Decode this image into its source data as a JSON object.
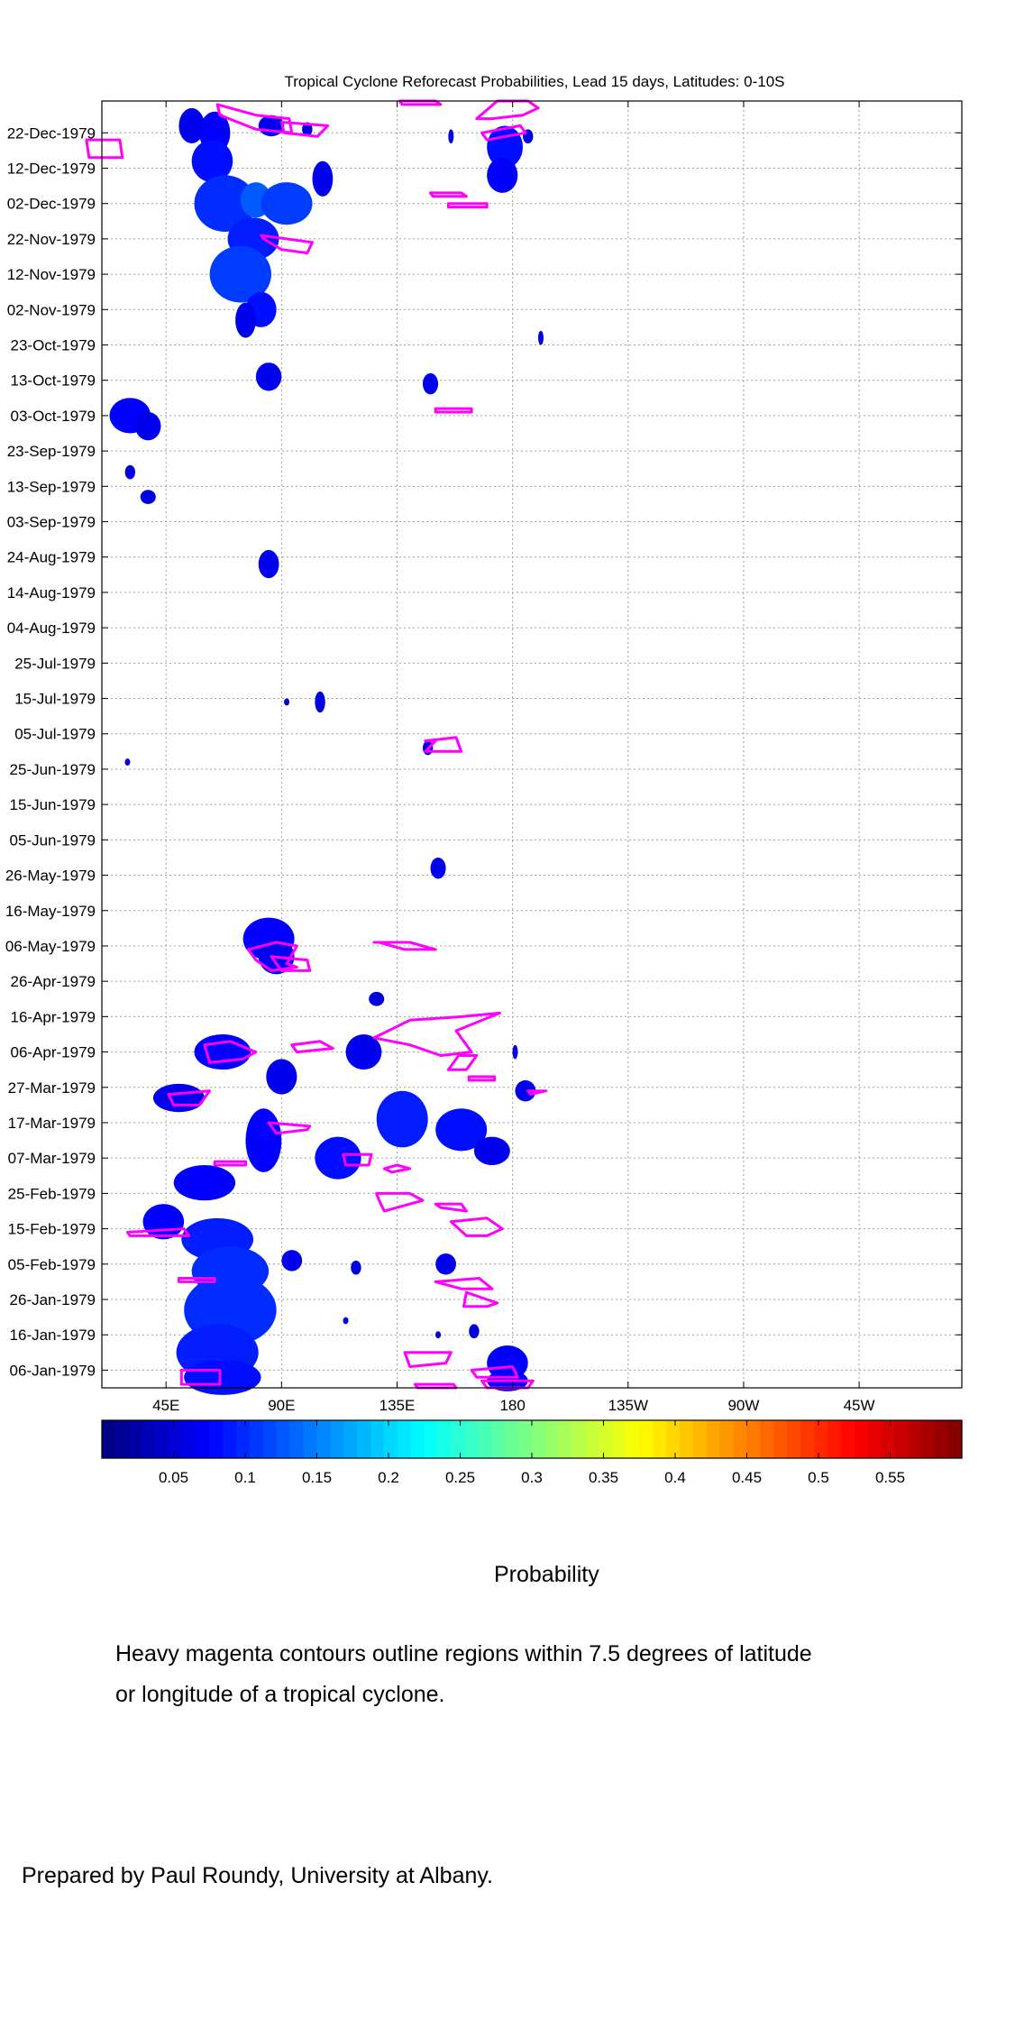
{
  "chart_data": {
    "type": "heatmap",
    "title": "Tropical Cyclone Reforecast Probabilities, Lead 15 days, Latitudes: 0-10S",
    "xlabel": "",
    "ylabel": "",
    "x_range_deg": [
      20,
      355
    ],
    "x_ticks": [
      {
        "lon": 45,
        "label": "45E"
      },
      {
        "lon": 90,
        "label": "90E"
      },
      {
        "lon": 135,
        "label": "135E"
      },
      {
        "lon": 180,
        "label": "180"
      },
      {
        "lon": 225,
        "label": "135W"
      },
      {
        "lon": 270,
        "label": "90W"
      },
      {
        "lon": 315,
        "label": "45W"
      }
    ],
    "y_range_days": [
      0,
      364
    ],
    "y_ticks": [
      {
        "day": 5,
        "label": "06-Jan-1979"
      },
      {
        "day": 15,
        "label": "16-Jan-1979"
      },
      {
        "day": 25,
        "label": "26-Jan-1979"
      },
      {
        "day": 35,
        "label": "05-Feb-1979"
      },
      {
        "day": 45,
        "label": "15-Feb-1979"
      },
      {
        "day": 55,
        "label": "25-Feb-1979"
      },
      {
        "day": 65,
        "label": "07-Mar-1979"
      },
      {
        "day": 75,
        "label": "17-Mar-1979"
      },
      {
        "day": 85,
        "label": "27-Mar-1979"
      },
      {
        "day": 95,
        "label": "06-Apr-1979"
      },
      {
        "day": 105,
        "label": "16-Apr-1979"
      },
      {
        "day": 115,
        "label": "26-Apr-1979"
      },
      {
        "day": 125,
        "label": "06-May-1979"
      },
      {
        "day": 135,
        "label": "16-May-1979"
      },
      {
        "day": 145,
        "label": "26-May-1979"
      },
      {
        "day": 155,
        "label": "05-Jun-1979"
      },
      {
        "day": 165,
        "label": "15-Jun-1979"
      },
      {
        "day": 175,
        "label": "25-Jun-1979"
      },
      {
        "day": 185,
        "label": "05-Jul-1979"
      },
      {
        "day": 195,
        "label": "15-Jul-1979"
      },
      {
        "day": 205,
        "label": "25-Jul-1979"
      },
      {
        "day": 215,
        "label": "04-Aug-1979"
      },
      {
        "day": 225,
        "label": "14-Aug-1979"
      },
      {
        "day": 235,
        "label": "24-Aug-1979"
      },
      {
        "day": 245,
        "label": "03-Sep-1979"
      },
      {
        "day": 255,
        "label": "13-Sep-1979"
      },
      {
        "day": 265,
        "label": "23-Sep-1979"
      },
      {
        "day": 275,
        "label": "03-Oct-1979"
      },
      {
        "day": 285,
        "label": "13-Oct-1979"
      },
      {
        "day": 295,
        "label": "23-Oct-1979"
      },
      {
        "day": 305,
        "label": "02-Nov-1979"
      },
      {
        "day": 315,
        "label": "12-Nov-1979"
      },
      {
        "day": 325,
        "label": "22-Nov-1979"
      },
      {
        "day": 335,
        "label": "02-Dec-1979"
      },
      {
        "day": 345,
        "label": "12-Dec-1979"
      },
      {
        "day": 355,
        "label": "22-Dec-1979"
      }
    ],
    "grid": true,
    "colorbar": {
      "range": [
        0,
        0.6
      ],
      "tick_labels": [
        "0.05",
        "0.1",
        "0.15",
        "0.2",
        "0.25",
        "0.3",
        "0.35",
        "0.4",
        "0.45",
        "0.5",
        "0.55"
      ],
      "tick_values": [
        0.05,
        0.1,
        0.15,
        0.2,
        0.25,
        0.3,
        0.35,
        0.4,
        0.45,
        0.5,
        0.55
      ],
      "label": "Probability",
      "colormap": "jet"
    },
    "probability_blobs": [
      {
        "lon": 55,
        "day": 357,
        "dlon": 5,
        "dday": 5,
        "p": 0.05
      },
      {
        "lon": 64,
        "day": 355,
        "dlon": 6,
        "dday": 6,
        "p": 0.06
      },
      {
        "lon": 86,
        "day": 357,
        "dlon": 5,
        "dday": 3,
        "p": 0.05
      },
      {
        "lon": 63,
        "day": 347,
        "dlon": 8,
        "dday": 6,
        "p": 0.07
      },
      {
        "lon": 68,
        "day": 335,
        "dlon": 12,
        "dday": 8,
        "p": 0.09
      },
      {
        "lon": 80,
        "day": 336,
        "dlon": 6,
        "dday": 5,
        "p": 0.12
      },
      {
        "lon": 92,
        "day": 335,
        "dlon": 10,
        "dday": 6,
        "p": 0.1
      },
      {
        "lon": 106,
        "day": 342,
        "dlon": 4,
        "dday": 5,
        "p": 0.05
      },
      {
        "lon": 79,
        "day": 325,
        "dlon": 10,
        "dday": 6,
        "p": 0.08
      },
      {
        "lon": 74,
        "day": 315,
        "dlon": 12,
        "dday": 8,
        "p": 0.1
      },
      {
        "lon": 82,
        "day": 305,
        "dlon": 6,
        "dday": 5,
        "p": 0.07
      },
      {
        "lon": 76,
        "day": 302,
        "dlon": 4,
        "dday": 5,
        "p": 0.05
      },
      {
        "lon": 100,
        "day": 356,
        "dlon": 2,
        "dday": 2,
        "p": 0.04
      },
      {
        "lon": 156,
        "day": 354,
        "dlon": 1,
        "dday": 2,
        "p": 0.04
      },
      {
        "lon": 186,
        "day": 354,
        "dlon": 2,
        "dday": 2,
        "p": 0.04
      },
      {
        "lon": 177,
        "day": 351,
        "dlon": 7,
        "dday": 6,
        "p": 0.07
      },
      {
        "lon": 176,
        "day": 343,
        "dlon": 6,
        "dday": 5,
        "p": 0.06
      },
      {
        "lon": 191,
        "day": 297,
        "dlon": 1,
        "dday": 2,
        "p": 0.04
      },
      {
        "lon": 85,
        "day": 286,
        "dlon": 5,
        "dday": 4,
        "p": 0.05
      },
      {
        "lon": 148,
        "day": 284,
        "dlon": 3,
        "dday": 3,
        "p": 0.05
      },
      {
        "lon": 31,
        "day": 275,
        "dlon": 8,
        "dday": 5,
        "p": 0.06
      },
      {
        "lon": 38,
        "day": 272,
        "dlon": 5,
        "dday": 4,
        "p": 0.05
      },
      {
        "lon": 31,
        "day": 259,
        "dlon": 2,
        "dday": 2,
        "p": 0.04
      },
      {
        "lon": 38,
        "day": 252,
        "dlon": 3,
        "dday": 2,
        "p": 0.04
      },
      {
        "lon": 85,
        "day": 233,
        "dlon": 4,
        "dday": 4,
        "p": 0.05
      },
      {
        "lon": 105,
        "day": 194,
        "dlon": 2,
        "dday": 3,
        "p": 0.04
      },
      {
        "lon": 92,
        "day": 194,
        "dlon": 1,
        "dday": 1,
        "p": 0.04
      },
      {
        "lon": 147,
        "day": 181,
        "dlon": 2,
        "dday": 2,
        "p": 0.04
      },
      {
        "lon": 30,
        "day": 177,
        "dlon": 1,
        "dday": 1,
        "p": 0.04
      },
      {
        "lon": 151,
        "day": 147,
        "dlon": 3,
        "dday": 3,
        "p": 0.05
      },
      {
        "lon": 85,
        "day": 127,
        "dlon": 10,
        "dday": 6,
        "p": 0.06
      },
      {
        "lon": 88,
        "day": 122,
        "dlon": 7,
        "dday": 5,
        "p": 0.05
      },
      {
        "lon": 127,
        "day": 110,
        "dlon": 3,
        "dday": 2,
        "p": 0.04
      },
      {
        "lon": 67,
        "day": 95,
        "dlon": 11,
        "dday": 5,
        "p": 0.06
      },
      {
        "lon": 90,
        "day": 88,
        "dlon": 6,
        "dday": 5,
        "p": 0.05
      },
      {
        "lon": 122,
        "day": 95,
        "dlon": 7,
        "dday": 5,
        "p": 0.05
      },
      {
        "lon": 50,
        "day": 82,
        "dlon": 10,
        "dday": 4,
        "p": 0.05
      },
      {
        "lon": 137,
        "day": 76,
        "dlon": 10,
        "dday": 8,
        "p": 0.08
      },
      {
        "lon": 160,
        "day": 73,
        "dlon": 10,
        "dday": 6,
        "p": 0.07
      },
      {
        "lon": 172,
        "day": 67,
        "dlon": 7,
        "dday": 4,
        "p": 0.05
      },
      {
        "lon": 185,
        "day": 84,
        "dlon": 4,
        "dday": 3,
        "p": 0.05
      },
      {
        "lon": 112,
        "day": 65,
        "dlon": 9,
        "dday": 6,
        "p": 0.07
      },
      {
        "lon": 83,
        "day": 70,
        "dlon": 7,
        "dday": 9,
        "p": 0.06
      },
      {
        "lon": 60,
        "day": 58,
        "dlon": 12,
        "dday": 5,
        "p": 0.06
      },
      {
        "lon": 44,
        "day": 47,
        "dlon": 8,
        "dday": 5,
        "p": 0.06
      },
      {
        "lon": 65,
        "day": 42,
        "dlon": 14,
        "dday": 6,
        "p": 0.08
      },
      {
        "lon": 70,
        "day": 33,
        "dlon": 15,
        "dday": 7,
        "p": 0.09
      },
      {
        "lon": 70,
        "day": 22,
        "dlon": 18,
        "dday": 10,
        "p": 0.09
      },
      {
        "lon": 65,
        "day": 10,
        "dlon": 16,
        "dday": 8,
        "p": 0.08
      },
      {
        "lon": 67,
        "day": 3,
        "dlon": 15,
        "dday": 5,
        "p": 0.07
      },
      {
        "lon": 94,
        "day": 36,
        "dlon": 4,
        "dday": 3,
        "p": 0.05
      },
      {
        "lon": 119,
        "day": 34,
        "dlon": 2,
        "dday": 2,
        "p": 0.04
      },
      {
        "lon": 154,
        "day": 35,
        "dlon": 4,
        "dday": 3,
        "p": 0.05
      },
      {
        "lon": 178,
        "day": 7,
        "dlon": 8,
        "dday": 5,
        "p": 0.06
      },
      {
        "lon": 178,
        "day": 2,
        "dlon": 8,
        "dday": 3,
        "p": 0.06
      },
      {
        "lon": 165,
        "day": 16,
        "dlon": 2,
        "dday": 2,
        "p": 0.04
      },
      {
        "lon": 151,
        "day": 15,
        "dlon": 1,
        "dday": 1,
        "p": 0.04
      },
      {
        "lon": 115,
        "day": 19,
        "dlon": 1,
        "dday": 1,
        "p": 0.04
      },
      {
        "lon": 181,
        "day": 95,
        "dlon": 1,
        "dday": 2,
        "p": 0.04
      }
    ],
    "cyclone_contours": [
      [
        [
          14,
          353
        ],
        [
          27,
          353
        ],
        [
          28,
          348
        ],
        [
          15,
          348
        ]
      ],
      [
        [
          65,
          363
        ],
        [
          80,
          360
        ],
        [
          93,
          359
        ],
        [
          94,
          355
        ],
        [
          80,
          356
        ],
        [
          66,
          360
        ]
      ],
      [
        [
          90,
          358
        ],
        [
          108,
          357
        ],
        [
          104,
          354
        ],
        [
          91,
          355
        ]
      ],
      [
        [
          136,
          364
        ],
        [
          150,
          364
        ],
        [
          152,
          363
        ],
        [
          137,
          363
        ]
      ],
      [
        [
          166,
          359
        ],
        [
          174,
          364
        ],
        [
          186,
          364
        ],
        [
          190,
          362
        ],
        [
          184,
          360
        ],
        [
          172,
          359
        ]
      ],
      [
        [
          168,
          355
        ],
        [
          183,
          357
        ],
        [
          185,
          355
        ],
        [
          170,
          353
        ]
      ],
      [
        [
          148,
          338
        ],
        [
          160,
          338
        ],
        [
          162,
          337
        ],
        [
          149,
          337
        ]
      ],
      [
        [
          155,
          335
        ],
        [
          170,
          335
        ],
        [
          170,
          334
        ],
        [
          155,
          334
        ]
      ],
      [
        [
          82,
          326
        ],
        [
          102,
          324
        ],
        [
          100,
          321
        ],
        [
          90,
          322
        ],
        [
          83,
          325
        ]
      ],
      [
        [
          150,
          277
        ],
        [
          164,
          277
        ],
        [
          164,
          276
        ],
        [
          150,
          276
        ]
      ],
      [
        [
          146,
          183
        ],
        [
          158,
          184
        ],
        [
          160,
          180
        ],
        [
          146,
          180
        ],
        [
          150,
          183
        ]
      ],
      [
        [
          126,
          126
        ],
        [
          140,
          126
        ],
        [
          150,
          124
        ],
        [
          138,
          124
        ],
        [
          128,
          126
        ]
      ],
      [
        [
          77,
          124
        ],
        [
          88,
          126
        ],
        [
          96,
          125
        ],
        [
          92,
          120
        ],
        [
          96,
          119
        ],
        [
          86,
          118
        ],
        [
          80,
          121
        ]
      ],
      [
        [
          86,
          122
        ],
        [
          100,
          121
        ],
        [
          101,
          118
        ],
        [
          90,
          118
        ]
      ],
      [
        [
          126,
          99
        ],
        [
          140,
          104
        ],
        [
          160,
          105
        ],
        [
          175,
          106
        ],
        [
          158,
          101
        ],
        [
          164,
          95
        ],
        [
          152,
          94
        ],
        [
          140,
          97
        ]
      ],
      [
        [
          159,
          94
        ],
        [
          166,
          94
        ],
        [
          162,
          90
        ],
        [
          155,
          90
        ]
      ],
      [
        [
          163,
          88
        ],
        [
          173,
          88
        ],
        [
          173,
          87
        ],
        [
          163,
          87
        ]
      ],
      [
        [
          193,
          84
        ],
        [
          186,
          84
        ],
        [
          187,
          83
        ],
        [
          193,
          84
        ]
      ],
      [
        [
          60,
          97
        ],
        [
          70,
          98
        ],
        [
          80,
          95
        ],
        [
          75,
          93
        ],
        [
          62,
          92
        ]
      ],
      [
        [
          94,
          97
        ],
        [
          105,
          98
        ],
        [
          110,
          96
        ],
        [
          96,
          95
        ]
      ],
      [
        [
          46,
          83
        ],
        [
          62,
          84
        ],
        [
          58,
          80
        ],
        [
          48,
          80
        ]
      ],
      [
        [
          85,
          75
        ],
        [
          101,
          74
        ],
        [
          100,
          73
        ],
        [
          88,
          72
        ]
      ],
      [
        [
          64,
          64
        ],
        [
          76,
          64
        ],
        [
          76,
          63
        ],
        [
          64,
          63
        ]
      ],
      [
        [
          114,
          66
        ],
        [
          125,
          66
        ],
        [
          124,
          63
        ],
        [
          115,
          63
        ]
      ],
      [
        [
          130,
          62
        ],
        [
          135,
          63
        ],
        [
          140,
          62
        ],
        [
          133,
          61
        ]
      ],
      [
        [
          127,
          55
        ],
        [
          140,
          55
        ],
        [
          145,
          53
        ],
        [
          135,
          51
        ],
        [
          130,
          50
        ],
        [
          128,
          53
        ]
      ],
      [
        [
          150,
          52
        ],
        [
          160,
          52
        ],
        [
          162,
          50
        ],
        [
          152,
          51
        ]
      ],
      [
        [
          156,
          47
        ],
        [
          170,
          48
        ],
        [
          176,
          45
        ],
        [
          170,
          43
        ],
        [
          162,
          43
        ]
      ],
      [
        [
          30,
          44
        ],
        [
          52,
          45
        ],
        [
          54,
          43
        ],
        [
          31,
          43
        ]
      ],
      [
        [
          50,
          31
        ],
        [
          64,
          31
        ],
        [
          64,
          30
        ],
        [
          50,
          30
        ]
      ],
      [
        [
          150,
          30
        ],
        [
          167,
          31
        ],
        [
          172,
          28
        ],
        [
          160,
          28
        ]
      ],
      [
        [
          162,
          27
        ],
        [
          170,
          25
        ],
        [
          174,
          24
        ],
        [
          170,
          23
        ],
        [
          161,
          23
        ]
      ],
      [
        [
          138,
          10
        ],
        [
          156,
          10
        ],
        [
          154,
          7
        ],
        [
          140,
          6
        ]
      ],
      [
        [
          164,
          5
        ],
        [
          180,
          6
        ],
        [
          182,
          3
        ],
        [
          166,
          3
        ]
      ],
      [
        [
          142,
          1
        ],
        [
          157,
          1
        ],
        [
          158,
          0
        ],
        [
          143,
          0
        ]
      ],
      [
        [
          168,
          2
        ],
        [
          188,
          2
        ],
        [
          186,
          0
        ],
        [
          170,
          0
        ]
      ],
      [
        [
          51,
          5
        ],
        [
          66,
          5
        ],
        [
          66,
          1
        ],
        [
          51,
          1
        ]
      ]
    ]
  },
  "captions": {
    "probability_label": "Probability",
    "note_line1": "Heavy magenta contours outline regions within 7.5 degrees of latitude",
    "note_line2": "or longitude of a tropical cyclone.",
    "credit": "Prepared by Paul Roundy, University at Albany."
  },
  "colors": {
    "contour": "#ff00ff",
    "grid": "#a0a0a0"
  }
}
